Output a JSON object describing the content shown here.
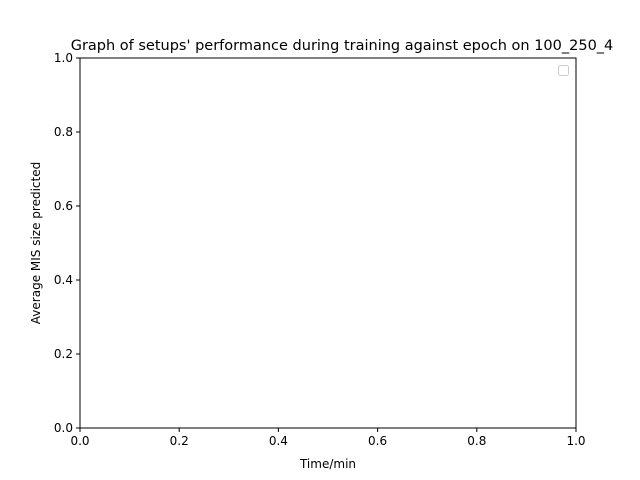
{
  "chart_data": {
    "type": "line",
    "title": "Graph of setups' performance during training against epoch on 100_250_4",
    "xlabel": "Time/min",
    "ylabel": "Average MIS size predicted",
    "xlim": [
      0.0,
      1.0
    ],
    "ylim": [
      0.0,
      1.0
    ],
    "x_ticks": [
      0.0,
      0.2,
      0.4,
      0.6,
      0.8,
      1.0
    ],
    "y_ticks": [
      0.0,
      0.2,
      0.4,
      0.6,
      0.8,
      1.0
    ],
    "x_tick_labels": [
      "0.0",
      "0.2",
      "0.4",
      "0.6",
      "0.8",
      "1.0"
    ],
    "y_tick_labels": [
      "0.0",
      "0.2",
      "0.4",
      "0.6",
      "0.8",
      "1.0"
    ],
    "grid": false,
    "legend": {
      "placement": "top-right",
      "entries": []
    },
    "series": []
  }
}
